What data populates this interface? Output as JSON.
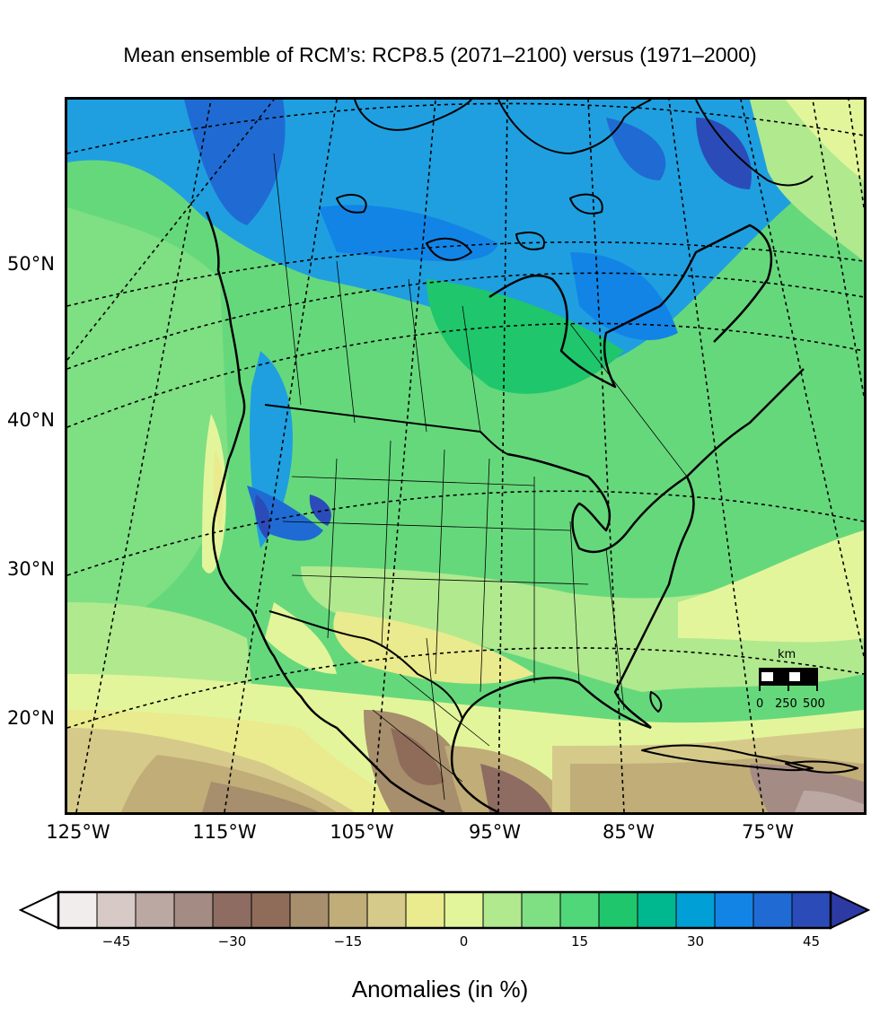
{
  "title": "Mean ensemble of RCM’s: RCP8.5 (2071–2100) versus (1971–2000)",
  "lat_labels": [
    "50°N",
    "40°N",
    "30°N",
    "20°N"
  ],
  "lon_labels": [
    "125°W",
    "115°W",
    "105°W",
    "95°W",
    "85°W",
    "75°W"
  ],
  "scale_bar": {
    "unit": "km",
    "ticks": [
      "0",
      "250",
      "500"
    ]
  },
  "colorbar": {
    "label": "Anomalies (in %)",
    "ticks": [
      "−45",
      "−30",
      "−15",
      "0",
      "15",
      "30",
      "45"
    ],
    "colors": [
      "#f2eded",
      "#d6c9c6",
      "#bba8a3",
      "#a48b84",
      "#8e6c62",
      "#8f6c59",
      "#a78e6d",
      "#c0ad78",
      "#d6ca8a",
      "#eaea8e",
      "#e3f59b",
      "#b1e98e",
      "#7fdf83",
      "#4fd77a",
      "#1fc66c",
      "#00b88f",
      "#00a0d6",
      "#1284e6",
      "#1f6bd3",
      "#2b4cb8"
    ],
    "under_color": "#ffffff",
    "over_color": "#2e3aa4"
  }
}
